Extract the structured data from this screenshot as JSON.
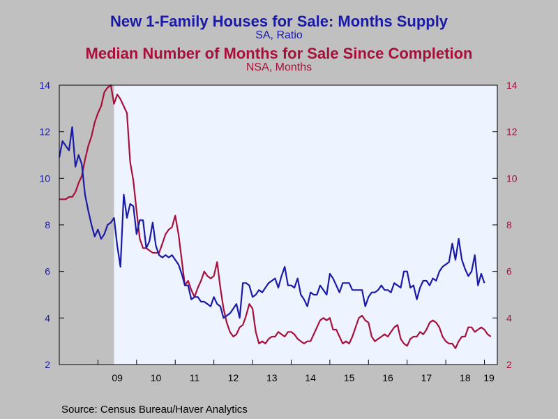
{
  "titles": {
    "series1_title": "New 1-Family Houses for Sale: Months Supply",
    "series1_subtitle": "SA, Ratio",
    "series2_title": "Median Number of Months for Sale Since Completion",
    "series2_subtitle": "NSA, Months"
  },
  "source": "Source:  Census Bureau/Haver Analytics",
  "colors": {
    "series1": "#1a1aa6",
    "series2": "#a6103a",
    "plot_background": "#eef4ff",
    "recession_band": "#c0c0c0",
    "page_background": "#c0c0c0"
  },
  "chart_data": {
    "type": "line",
    "x_start": "2008-01",
    "x_end": "2019-05",
    "x_tick_labels": [
      "09",
      "10",
      "11",
      "12",
      "13",
      "14",
      "15",
      "16",
      "17",
      "18",
      "19"
    ],
    "x_tick_years": [
      2009,
      2010,
      2011,
      2012,
      2013,
      2014,
      2015,
      2016,
      2017,
      2018,
      2019
    ],
    "y_left_range": [
      2,
      14
    ],
    "y_right_range": [
      2,
      14
    ],
    "y_left_ticks": [
      2,
      4,
      6,
      8,
      10,
      12,
      14
    ],
    "y_right_ticks": [
      2,
      4,
      6,
      8,
      10,
      12,
      14
    ],
    "grid": false,
    "shaded_recession": {
      "start": "2008-01",
      "end": "2009-06"
    },
    "series": [
      {
        "name": "New 1-Family Houses for Sale: Months Supply",
        "axis": "left",
        "frequency": "monthly",
        "start": "2008-01",
        "values": [
          10.9,
          11.6,
          11.4,
          11.2,
          12.2,
          10.5,
          11.0,
          10.6,
          9.3,
          8.6,
          8.0,
          7.5,
          7.8,
          7.4,
          7.6,
          8.0,
          8.1,
          8.3,
          7.1,
          6.2,
          9.3,
          8.3,
          8.9,
          8.8,
          7.6,
          8.2,
          8.2,
          7.0,
          7.3,
          8.1,
          7.1,
          6.7,
          6.6,
          6.7,
          6.6,
          6.7,
          6.5,
          6.3,
          5.9,
          5.4,
          5.4,
          4.8,
          4.9,
          4.9,
          4.7,
          4.7,
          4.6,
          4.5,
          4.9,
          4.6,
          4.5,
          4.0,
          4.1,
          4.2,
          4.4,
          4.6,
          4.0,
          5.5,
          5.5,
          5.4,
          4.9,
          5.0,
          5.2,
          5.1,
          5.3,
          5.5,
          5.6,
          5.7,
          5.3,
          5.8,
          6.2,
          5.4,
          5.4,
          5.3,
          5.7,
          5.0,
          4.8,
          4.5,
          5.1,
          5.0,
          5.0,
          5.4,
          5.2,
          5.0,
          5.9,
          5.7,
          5.4,
          5.1,
          5.5,
          5.5,
          5.5,
          5.2,
          5.2,
          5.2,
          5.2,
          4.5,
          4.9,
          5.1,
          5.1,
          5.2,
          5.4,
          5.2,
          5.2,
          5.1,
          5.5,
          5.4,
          5.3,
          6.0,
          6.0,
          5.3,
          5.4,
          4.8,
          5.3,
          5.6,
          5.6,
          5.4,
          5.7,
          5.6,
          6.0,
          6.2,
          6.3,
          6.4,
          7.2,
          6.5,
          7.4,
          6.5,
          6.1,
          5.8,
          6.0,
          6.7,
          5.4,
          5.9,
          5.5
        ]
      },
      {
        "name": "Median Number of Months for Sale Since Completion",
        "axis": "right",
        "frequency": "monthly",
        "start": "2008-01",
        "values": [
          9.1,
          9.1,
          9.1,
          9.2,
          9.2,
          9.4,
          9.8,
          10.1,
          10.8,
          11.4,
          11.8,
          12.4,
          12.8,
          13.1,
          13.7,
          13.9,
          14.0,
          13.2,
          13.6,
          13.4,
          13.1,
          12.8,
          10.7,
          9.9,
          8.6,
          7.4,
          7.0,
          7.0,
          6.9,
          6.8,
          6.8,
          6.8,
          7.2,
          7.6,
          7.8,
          7.9,
          8.4,
          7.6,
          6.5,
          5.4,
          5.6,
          5.2,
          4.9,
          5.3,
          5.6,
          6.0,
          5.8,
          5.7,
          5.8,
          6.4,
          5.3,
          4.4,
          3.8,
          3.4,
          3.2,
          3.3,
          3.6,
          3.7,
          4.1,
          4.6,
          4.4,
          3.4,
          2.9,
          3.0,
          2.9,
          3.1,
          3.2,
          3.2,
          3.4,
          3.3,
          3.2,
          3.4,
          3.4,
          3.3,
          3.1,
          3.0,
          2.9,
          3.0,
          3.0,
          3.3,
          3.6,
          3.9,
          4.0,
          3.9,
          4.0,
          3.5,
          3.5,
          3.2,
          2.9,
          3.0,
          2.9,
          3.2,
          3.6,
          4.0,
          4.1,
          3.9,
          3.8,
          3.2,
          3.0,
          3.1,
          3.2,
          3.3,
          3.2,
          3.4,
          3.6,
          3.7,
          3.1,
          2.9,
          2.8,
          3.1,
          3.2,
          3.2,
          3.4,
          3.3,
          3.5,
          3.8,
          3.9,
          3.8,
          3.6,
          3.2,
          3.0,
          2.9,
          2.9,
          2.7,
          3.0,
          3.2,
          3.2,
          3.6,
          3.6,
          3.4,
          3.5,
          3.6,
          3.5,
          3.3,
          3.2
        ]
      }
    ]
  }
}
